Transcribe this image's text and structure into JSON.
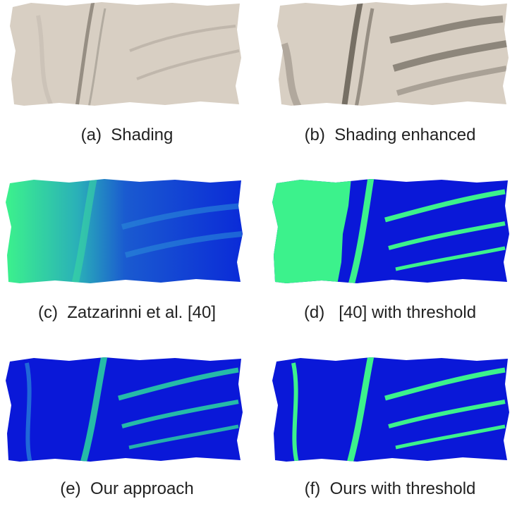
{
  "figure": {
    "panels": [
      {
        "id": "a",
        "caption": "(a)  Shading",
        "render": "shading"
      },
      {
        "id": "b",
        "caption": "(b)  Shading enhanced",
        "render": "shading-enhanced"
      },
      {
        "id": "c",
        "caption": "(c)  Zatzarinni et al. [40]",
        "render": "heatmap-smooth"
      },
      {
        "id": "d",
        "caption": "(d)   [40] with threshold",
        "render": "heatmap-threshold"
      },
      {
        "id": "e",
        "caption": "(e)  Our approach",
        "render": "heatmap-smooth"
      },
      {
        "id": "f",
        "caption": "(f)  Ours with threshold",
        "render": "heatmap-threshold"
      }
    ],
    "colors": {
      "shading_base": "#d8cfc3",
      "shading_dark": "#6e665c",
      "heat_low": "#0a18d8",
      "heat_high": "#3cf28c",
      "heat_mid": "#2a7ad8"
    }
  }
}
